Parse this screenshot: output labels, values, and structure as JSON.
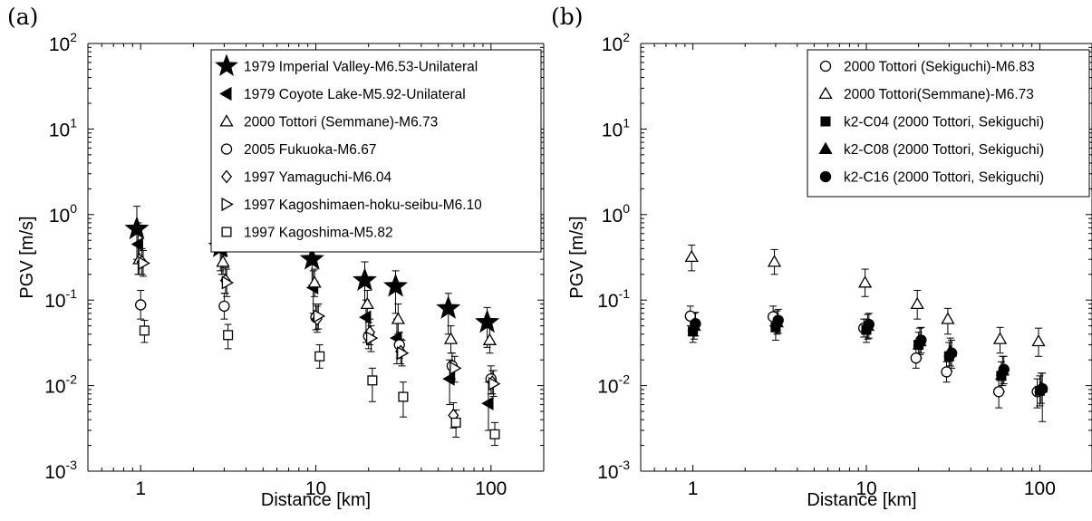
{
  "figure": {
    "panels": [
      "(a)",
      "(b)"
    ]
  },
  "chart_data": [
    {
      "type": "scatter",
      "panel_label": "(a)",
      "xlabel": "Distance [km]",
      "ylabel": "PGV [m/s]",
      "x_scale": "log",
      "y_scale": "log",
      "xlim": [
        0.5,
        200
      ],
      "ylim": [
        0.001,
        100
      ],
      "x_ticks": [
        {
          "value": 1,
          "label": "1"
        },
        {
          "value": 10,
          "label": "10"
        },
        {
          "value": 100,
          "label": "100"
        }
      ],
      "y_ticks": [
        {
          "value": 0.001,
          "base": "10",
          "exp": "-3"
        },
        {
          "value": 0.01,
          "base": "10",
          "exp": "-2"
        },
        {
          "value": 0.1,
          "base": "10",
          "exp": "-1"
        },
        {
          "value": 1,
          "base": "10",
          "exp": "0"
        },
        {
          "value": 10,
          "base": "10",
          "exp": "1"
        },
        {
          "value": 100,
          "base": "10",
          "exp": "2"
        }
      ],
      "legend_position": "top-right",
      "series": [
        {
          "name": "1979 Imperial Valley-M6.53-Unilateral",
          "marker": "star",
          "fill": "filled",
          "x": [
            1,
            3,
            10,
            20,
            30,
            60,
            100
          ],
          "y": [
            0.68,
            0.42,
            0.3,
            0.17,
            0.145,
            0.08,
            0.055
          ],
          "err_low": [
            0.3,
            0.22,
            0.15,
            0.08,
            0.07,
            0.04,
            0.028
          ],
          "err_high": [
            1.25,
            0.72,
            0.5,
            0.28,
            0.22,
            0.12,
            0.082
          ]
        },
        {
          "name": "1979 Coyote Lake-M5.92-Unilateral",
          "marker": "triangle-left",
          "fill": "filled",
          "x": [
            1,
            3,
            10,
            20,
            30,
            60,
            100
          ],
          "y": [
            0.45,
            0.38,
            0.14,
            0.063,
            0.036,
            0.012,
            0.0062
          ],
          "err_low": [
            0.2,
            0.2,
            0.07,
            0.032,
            0.018,
            0.006,
            0.003
          ],
          "err_high": [
            0.8,
            0.55,
            0.22,
            0.1,
            0.06,
            0.02,
            0.011
          ]
        },
        {
          "name": "2000 Tottori (Semmane)-M6.73",
          "marker": "triangle-up",
          "fill": "open",
          "x": [
            1,
            3,
            10,
            20,
            30,
            60,
            100
          ],
          "y": [
            0.3,
            0.28,
            0.16,
            0.09,
            0.06,
            0.035,
            0.034
          ],
          "err_low": [
            0.2,
            0.2,
            0.11,
            0.06,
            0.04,
            0.024,
            0.024
          ],
          "err_high": [
            0.45,
            0.4,
            0.23,
            0.13,
            0.09,
            0.05,
            0.048
          ]
        },
        {
          "name": "2005 Fukuoka-M6.67",
          "marker": "circle",
          "fill": "open",
          "x": [
            1,
            3,
            10,
            20,
            30,
            60,
            100
          ],
          "y": [
            0.088,
            0.085,
            0.063,
            0.038,
            0.03,
            0.017,
            0.012
          ],
          "err_low": [
            0.06,
            0.06,
            0.045,
            0.027,
            0.021,
            0.012,
            0.008
          ],
          "err_high": [
            0.13,
            0.12,
            0.09,
            0.055,
            0.042,
            0.024,
            0.017
          ]
        },
        {
          "name": "1997 Yamaguchi-M6.04",
          "marker": "diamond",
          "fill": "open",
          "x": [
            1,
            3,
            10,
            20,
            30,
            60,
            100
          ],
          "y": [
            0.28,
            0.17,
            0.06,
            0.042,
            0.025,
            0.0045,
            0.011
          ],
          "err_low": [
            0.2,
            0.12,
            0.042,
            0.03,
            0.018,
            0.0032,
            0.008
          ],
          "err_high": [
            0.4,
            0.24,
            0.085,
            0.06,
            0.035,
            0.0063,
            0.015
          ]
        },
        {
          "name": "1997 Kagoshimaen-hoku-seibu-M6.10",
          "marker": "triangle-right",
          "fill": "open",
          "x": [
            1,
            3,
            10,
            20,
            30,
            60,
            100
          ],
          "y": [
            0.27,
            0.16,
            0.065,
            0.036,
            0.024,
            0.016,
            0.0105
          ],
          "err_low": [
            0.19,
            0.11,
            0.046,
            0.025,
            0.017,
            0.011,
            0.0075
          ],
          "err_high": [
            0.38,
            0.23,
            0.09,
            0.05,
            0.034,
            0.022,
            0.015
          ]
        },
        {
          "name": "1997 Kagoshima-M5.82",
          "marker": "square",
          "fill": "open",
          "x": [
            1,
            3,
            10,
            20,
            30,
            60,
            100
          ],
          "y": [
            0.044,
            0.039,
            0.022,
            0.0115,
            0.0074,
            0.0037,
            0.0027
          ],
          "err_low": [
            0.032,
            0.027,
            0.016,
            0.0065,
            0.0043,
            0.0025,
            0.002
          ],
          "err_high": [
            0.058,
            0.052,
            0.03,
            0.016,
            0.011,
            0.0052,
            0.0037
          ]
        }
      ]
    },
    {
      "type": "scatter",
      "panel_label": "(b)",
      "xlabel": "Distance [km]",
      "ylabel": "PGV [m/s]",
      "x_scale": "log",
      "y_scale": "log",
      "xlim": [
        0.5,
        200
      ],
      "ylim": [
        0.001,
        100
      ],
      "x_ticks": [
        {
          "value": 1,
          "label": "1"
        },
        {
          "value": 10,
          "label": "10"
        },
        {
          "value": 100,
          "label": "100"
        }
      ],
      "y_ticks": [
        {
          "value": 0.001,
          "base": "10",
          "exp": "-3"
        },
        {
          "value": 0.01,
          "base": "10",
          "exp": "-2"
        },
        {
          "value": 0.1,
          "base": "10",
          "exp": "-1"
        },
        {
          "value": 1,
          "base": "10",
          "exp": "0"
        },
        {
          "value": 10,
          "base": "10",
          "exp": "1"
        },
        {
          "value": 100,
          "base": "10",
          "exp": "2"
        }
      ],
      "legend_position": "top-right",
      "series": [
        {
          "name": "2000 Tottori (Sekiguchi)-M6.83",
          "marker": "circle",
          "fill": "open",
          "x": [
            1,
            3,
            10,
            20,
            30,
            60,
            100
          ],
          "y": [
            0.065,
            0.064,
            0.047,
            0.021,
            0.0145,
            0.0085,
            0.0085
          ],
          "err_low": [
            0.05,
            0.05,
            0.037,
            0.016,
            0.011,
            0.0055,
            0.0055
          ],
          "err_high": [
            0.085,
            0.085,
            0.06,
            0.027,
            0.019,
            0.012,
            0.012
          ]
        },
        {
          "name": "2000 Tottori(Semmane)-M6.73",
          "marker": "triangle-up",
          "fill": "open",
          "x": [
            1,
            3,
            10,
            20,
            30,
            60,
            100
          ],
          "y": [
            0.32,
            0.28,
            0.16,
            0.09,
            0.06,
            0.035,
            0.033
          ],
          "err_low": [
            0.22,
            0.2,
            0.11,
            0.06,
            0.04,
            0.024,
            0.022
          ],
          "err_high": [
            0.44,
            0.39,
            0.23,
            0.13,
            0.08,
            0.048,
            0.047
          ]
        },
        {
          "name": "k2-C04 (2000 Tottori, Sekiguchi)",
          "marker": "square",
          "fill": "filled",
          "x": [
            1,
            3,
            10,
            20,
            30,
            60,
            100
          ],
          "y": [
            0.043,
            0.048,
            0.045,
            0.03,
            0.022,
            0.013,
            0.0087
          ],
          "err_low": [
            0.032,
            0.034,
            0.032,
            0.021,
            0.015,
            0.0085,
            0.0058
          ],
          "err_high": [
            0.058,
            0.064,
            0.06,
            0.042,
            0.032,
            0.019,
            0.013
          ]
        },
        {
          "name": "k2-C08 (2000 Tottori, Sekiguchi)",
          "marker": "triangle-up",
          "fill": "filled",
          "x": [
            1,
            3,
            10,
            20,
            30,
            60,
            100
          ],
          "y": [
            0.05,
            0.055,
            0.05,
            0.033,
            0.025,
            0.015,
            0.0095
          ],
          "err_low": [
            0.035,
            0.04,
            0.035,
            0.023,
            0.017,
            0.01,
            0.0062
          ],
          "err_high": [
            0.07,
            0.075,
            0.068,
            0.047,
            0.036,
            0.022,
            0.014
          ]
        },
        {
          "name": "k2-C16 (2000 Tottori, Sekiguchi)",
          "marker": "circle",
          "fill": "filled",
          "x": [
            1,
            3,
            10,
            20,
            30,
            60,
            100
          ],
          "y": [
            0.053,
            0.058,
            0.052,
            0.034,
            0.024,
            0.0155,
            0.0092
          ],
          "err_low": [
            0.038,
            0.041,
            0.036,
            0.024,
            0.016,
            0.0105,
            0.0038
          ],
          "err_high": [
            0.072,
            0.078,
            0.07,
            0.048,
            0.034,
            0.022,
            0.014
          ]
        }
      ]
    }
  ]
}
